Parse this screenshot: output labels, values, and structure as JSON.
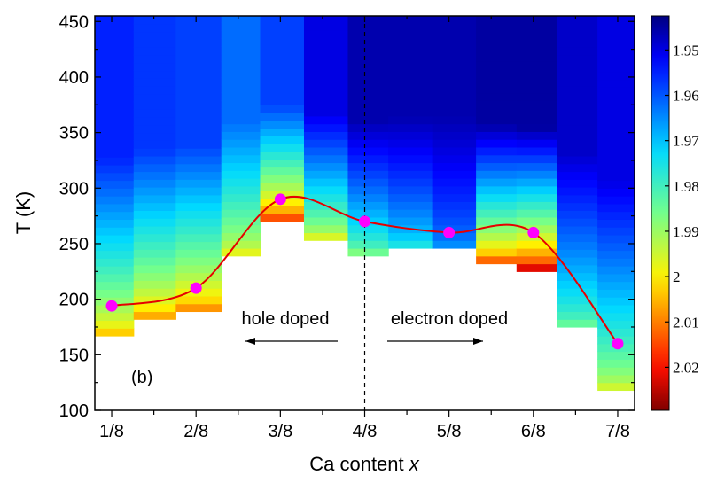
{
  "chart_data": {
    "type": "heatmap",
    "xlabel_prefix": "Ca content ",
    "xlabel_var": "x",
    "ylabel": "T (K)",
    "x_ticks": [
      "1/8",
      "2/8",
      "3/8",
      "4/8",
      "5/8",
      "6/8",
      "7/8"
    ],
    "x_tick_values": [
      0.125,
      0.25,
      0.375,
      0.5,
      0.625,
      0.75,
      0.875
    ],
    "xlim": [
      0.1,
      0.9
    ],
    "ylim": [
      100,
      455
    ],
    "y_ticks": [
      100,
      150,
      200,
      250,
      300,
      350,
      400,
      450
    ],
    "colorbar": {
      "ticks": [
        "1.95",
        "1.96",
        "1.97",
        "1.98",
        "1.99",
        "2",
        "2.01",
        "2.02"
      ],
      "tick_values": [
        1.95,
        1.96,
        1.97,
        1.98,
        1.99,
        2.0,
        2.01,
        2.02
      ],
      "range": [
        1.9425,
        2.0295
      ],
      "reversed": true,
      "colormap": "jet"
    },
    "heatmap_columns": [
      {
        "x_from": 0.1,
        "x_to": 0.1575,
        "t_min": 167,
        "top_value": 1.955,
        "bottom_value": 2.003
      },
      {
        "x_from": 0.1575,
        "x_to": 0.22,
        "t_min": 182,
        "top_value": 1.957,
        "bottom_value": 2.006
      },
      {
        "x_from": 0.22,
        "x_to": 0.2875,
        "t_min": 189,
        "top_value": 1.958,
        "bottom_value": 2.008
      },
      {
        "x_from": 0.2875,
        "x_to": 0.345,
        "t_min": 239,
        "top_value": 1.962,
        "bottom_value": 1.997
      },
      {
        "x_from": 0.345,
        "x_to": 0.41,
        "t_min": 270,
        "top_value": 1.958,
        "bottom_value": 2.014
      },
      {
        "x_from": 0.41,
        "x_to": 0.475,
        "t_min": 253,
        "top_value": 1.95,
        "bottom_value": 1.996
      },
      {
        "x_from": 0.475,
        "x_to": 0.5,
        "t_min": 239,
        "top_value": 1.946,
        "bottom_value": 1.987
      },
      {
        "x_from": 0.5,
        "x_to": 0.535,
        "t_min": 239,
        "top_value": 1.946,
        "bottom_value": 1.985
      },
      {
        "x_from": 0.535,
        "x_to": 0.6,
        "t_min": 246,
        "top_value": 1.946,
        "bottom_value": 1.975
      },
      {
        "x_from": 0.6,
        "x_to": 0.665,
        "t_min": 246,
        "top_value": 1.946,
        "bottom_value": 1.965
      },
      {
        "x_from": 0.665,
        "x_to": 0.725,
        "t_min": 232,
        "top_value": 1.945,
        "bottom_value": 2.012
      },
      {
        "x_from": 0.725,
        "x_to": 0.785,
        "t_min": 225,
        "top_value": 1.945,
        "bottom_value": 2.022
      },
      {
        "x_from": 0.785,
        "x_to": 0.845,
        "t_min": 175,
        "top_value": 1.948,
        "bottom_value": 1.984
      },
      {
        "x_from": 0.845,
        "x_to": 0.9,
        "t_min": 118,
        "top_value": 1.95,
        "bottom_value": 1.995
      }
    ],
    "series": [
      {
        "type": "scatter+spline",
        "color": "#ff00ff",
        "line_color": "#e60000",
        "x": [
          0.125,
          0.25,
          0.375,
          0.5,
          0.625,
          0.75,
          0.875
        ],
        "y": [
          194,
          210,
          290,
          270,
          260,
          260,
          160
        ]
      }
    ],
    "vline_x": 0.5,
    "annotations": {
      "panel_label": "(b)",
      "hole_doped": "hole doped",
      "electron_doped": "electron doped"
    },
    "grid": false
  }
}
